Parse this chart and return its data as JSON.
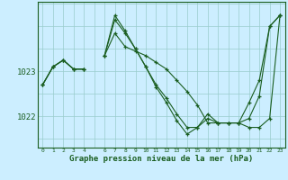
{
  "xlabel": "Graphe pression niveau de la mer (hPa)",
  "bg_color": "#cceeff",
  "line_color": "#1a5e20",
  "grid_color": "#99cccc",
  "ylim": [
    1021.3,
    1024.55
  ],
  "xlim": [
    -0.5,
    23.5
  ],
  "yticks": [
    1022,
    1023
  ],
  "xticks": [
    0,
    1,
    2,
    3,
    4,
    6,
    7,
    8,
    9,
    10,
    11,
    12,
    13,
    14,
    15,
    16,
    17,
    18,
    19,
    20,
    21,
    22,
    23
  ],
  "series": [
    [
      1022.7,
      1023.1,
      1023.25,
      1023.05,
      1023.05,
      null,
      1023.35,
      1023.85,
      1023.55,
      1023.45,
      1023.35,
      1023.2,
      1023.05,
      1022.8,
      1022.55,
      1022.25,
      1021.85,
      1021.85,
      1021.85,
      1021.85,
      1021.75,
      1021.75,
      1021.95,
      1024.25
    ],
    [
      1022.7,
      1023.1,
      1023.25,
      1023.05,
      1023.05,
      null,
      1023.35,
      1024.15,
      1023.85,
      1023.5,
      1023.1,
      1022.7,
      1022.4,
      1022.05,
      1021.75,
      1021.75,
      1021.95,
      1021.85,
      1021.85,
      1021.85,
      1021.95,
      1022.45,
      1024.0,
      1024.25
    ],
    [
      1022.7,
      1023.1,
      1023.25,
      1023.05,
      1023.05,
      null,
      1023.35,
      1024.25,
      1023.9,
      1023.5,
      1023.1,
      1022.65,
      1022.3,
      1021.9,
      1021.6,
      1021.75,
      1022.05,
      1021.85,
      1021.85,
      1021.85,
      1022.3,
      1022.8,
      1024.0,
      1024.25
    ]
  ]
}
